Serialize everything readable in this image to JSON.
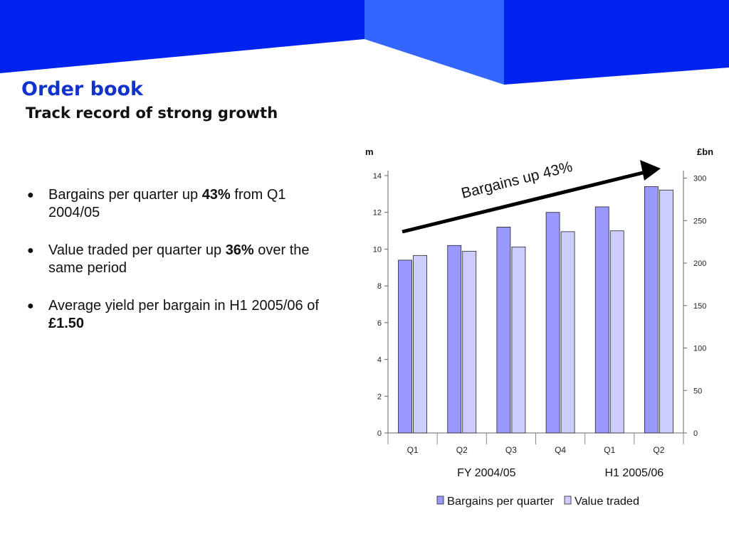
{
  "slide": {
    "title": "Order book",
    "subtitle": "Track record of strong growth",
    "colors": {
      "dark_blue": "#0022ee",
      "light_blue": "#3366ff",
      "title": "#1133cc"
    }
  },
  "bullets": [
    {
      "pre": "Bargains per quarter up ",
      "bold": "43%",
      "post": " from Q1 2004/05"
    },
    {
      "pre": "Value traded per quarter up ",
      "bold": "36%",
      "post": " over the same period"
    },
    {
      "pre": "Average yield per bargain in H1 2005/06 of ",
      "bold": "£1.50",
      "post": ""
    }
  ],
  "chart_data": {
    "type": "bar",
    "categories": [
      "Q1",
      "Q2",
      "Q3",
      "Q4",
      "Q1",
      "Q2"
    ],
    "groups": [
      {
        "label": "FY 2004/05",
        "span": [
          0,
          3
        ]
      },
      {
        "label": "H1 2005/06",
        "span": [
          4,
          5
        ]
      }
    ],
    "series": [
      {
        "name": "Bargains per quarter",
        "axis": "left",
        "color": "#9999ff",
        "values": [
          9.4,
          10.2,
          11.2,
          12.0,
          12.3,
          13.4
        ]
      },
      {
        "name": "Value traded",
        "axis": "right",
        "color": "#ccccff",
        "values": [
          209,
          214,
          219,
          237,
          238,
          286
        ]
      }
    ],
    "left_axis": {
      "label": "m",
      "ylim": [
        0,
        14
      ],
      "ticks": [
        0,
        2,
        4,
        6,
        8,
        10,
        12,
        14
      ]
    },
    "right_axis": {
      "label": "£bn",
      "ylim": [
        0,
        303
      ],
      "ticks": [
        0,
        50,
        100,
        150,
        200,
        250,
        300
      ]
    },
    "annotation": "Bargains up 43%",
    "legend_position": "bottom",
    "grid": false
  }
}
